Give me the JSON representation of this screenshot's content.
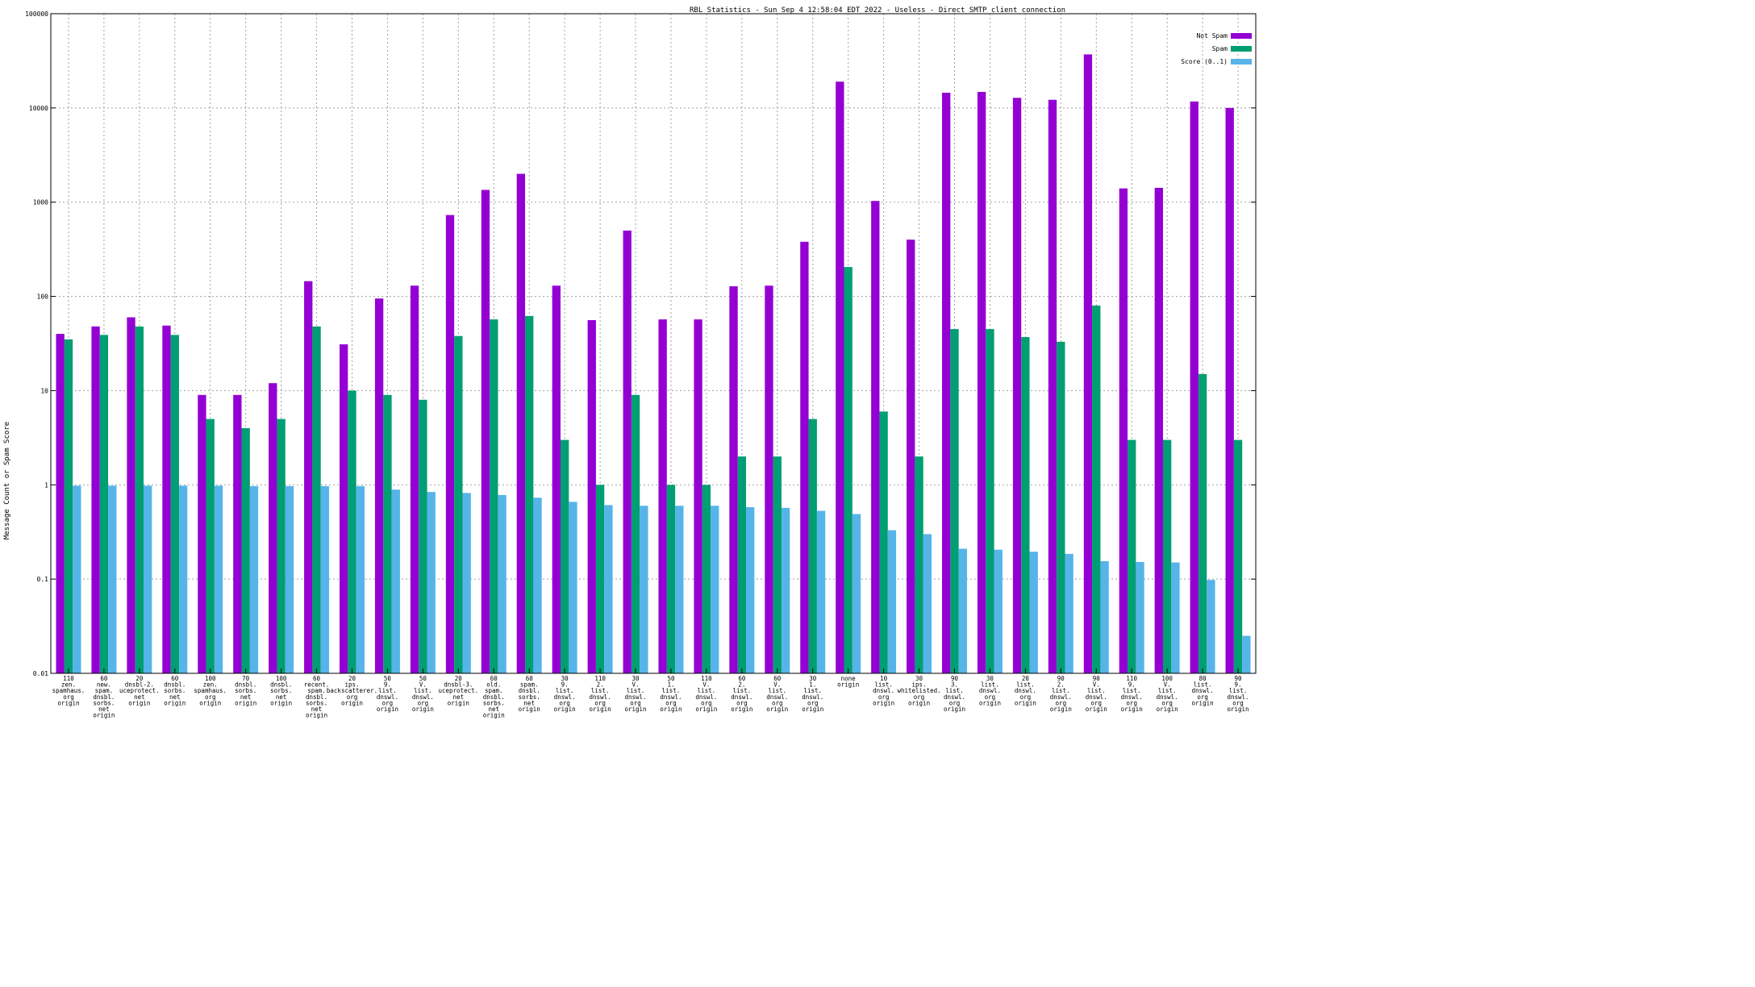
{
  "chart_data": {
    "type": "bar",
    "title": "RBL Statistics - Sun Sep  4 12:58:04 EDT 2022 - Useless - Direct SMTP client connection",
    "xlabel": "",
    "ylabel": "Message Count or Spam Score",
    "yscale": "log",
    "ylim": [
      0.01,
      100000
    ],
    "yticks": [
      {
        "value": 0.01,
        "label": "0.01"
      },
      {
        "value": 0.1,
        "label": "0.1"
      },
      {
        "value": 1,
        "label": "1"
      },
      {
        "value": 10,
        "label": "10"
      },
      {
        "value": 100,
        "label": "100"
      },
      {
        "value": 1000,
        "label": "1000"
      },
      {
        "value": 10000,
        "label": "10000"
      },
      {
        "value": 100000,
        "label": "100000"
      }
    ],
    "grid": true,
    "legend_position": "top-right",
    "categories": [
      [
        "110",
        "zen.",
        "spamhaus.",
        "org",
        "origin"
      ],
      [
        "60",
        "new.",
        "spam.",
        "dnsbl.",
        "sorbs.",
        "net",
        "origin"
      ],
      [
        "20",
        "dnsbl-2.",
        "uceprotect.",
        "net",
        "origin"
      ],
      [
        "60",
        "dnsbl.",
        "sorbs.",
        "net",
        "origin"
      ],
      [
        "100",
        "zen.",
        "spamhaus.",
        "org",
        "origin"
      ],
      [
        "70",
        "dnsbl.",
        "sorbs.",
        "net",
        "origin"
      ],
      [
        "100",
        "dnsbl.",
        "sorbs.",
        "net",
        "origin"
      ],
      [
        "60",
        "recent.",
        "spam.",
        "dnsbl.",
        "sorbs.",
        "net",
        "origin"
      ],
      [
        "20",
        "ips.",
        "backscatterer.",
        "org",
        "origin"
      ],
      [
        "50",
        "9.",
        "list.",
        "dnswl.",
        "org",
        "origin"
      ],
      [
        "50",
        "V.",
        "list.",
        "dnswl.",
        "org",
        "origin"
      ],
      [
        "20",
        "dnsbl-3.",
        "uceprotect.",
        "net",
        "origin"
      ],
      [
        "60",
        "old.",
        "spam.",
        "dnsbl.",
        "sorbs.",
        "net",
        "origin"
      ],
      [
        "60",
        "spam.",
        "dnsbl.",
        "sorbs.",
        "net",
        "origin"
      ],
      [
        "30",
        "9.",
        "list.",
        "dnswl.",
        "org",
        "origin"
      ],
      [
        "110",
        "2.",
        "list.",
        "dnswl.",
        "org",
        "origin"
      ],
      [
        "30",
        "V.",
        "list.",
        "dnswl.",
        "org",
        "origin"
      ],
      [
        "50",
        "1.",
        "list.",
        "dnswl.",
        "org",
        "origin"
      ],
      [
        "110",
        "V.",
        "list.",
        "dnswl.",
        "org",
        "origin"
      ],
      [
        "60",
        "2.",
        "list.",
        "dnswl.",
        "org",
        "origin"
      ],
      [
        "60",
        "V.",
        "list.",
        "dnswl.",
        "org",
        "origin"
      ],
      [
        "30",
        "1.",
        "list.",
        "dnswl.",
        "org",
        "origin"
      ],
      [
        "none",
        "origin"
      ],
      [
        "10",
        "list.",
        "dnswl.",
        "org",
        "origin"
      ],
      [
        "30",
        "ips.",
        "whitelisted.",
        "org",
        "origin"
      ],
      [
        "90",
        "3.",
        "list.",
        "dnswl.",
        "org",
        "origin"
      ],
      [
        "30",
        "list.",
        "dnswl.",
        "org",
        "origin"
      ],
      [
        "20",
        "list.",
        "dnswl.",
        "org",
        "origin"
      ],
      [
        "90",
        "2.",
        "list.",
        "dnswl.",
        "org",
        "origin"
      ],
      [
        "90",
        "V.",
        "list.",
        "dnswl.",
        "org",
        "origin"
      ],
      [
        "110",
        "9.",
        "list.",
        "dnswl.",
        "org",
        "origin"
      ],
      [
        "100",
        "V.",
        "list.",
        "dnswl.",
        "org",
        "origin"
      ],
      [
        "80",
        "list.",
        "dnswl.",
        "org",
        "origin"
      ],
      [
        "90",
        "9.",
        "list.",
        "dnswl.",
        "org",
        "origin"
      ]
    ],
    "series": [
      {
        "name": "Not Spam",
        "color": "#9400d3",
        "values": [
          40,
          48,
          60,
          49,
          9,
          9,
          12,
          145,
          31,
          95,
          130,
          730,
          1350,
          2000,
          130,
          56,
          500,
          57,
          57,
          128,
          130,
          380,
          19000,
          1030,
          400,
          14500,
          14800,
          12800,
          12200,
          37000,
          1400,
          1420,
          11700,
          10000
        ]
      },
      {
        "name": "Spam",
        "color": "#009e73",
        "values": [
          35,
          39,
          48,
          39,
          5,
          4,
          5,
          48,
          10,
          9,
          8,
          38,
          57,
          62,
          3,
          1,
          9,
          1,
          1,
          2,
          2,
          5,
          205,
          6,
          2,
          45,
          45,
          37,
          33,
          80,
          3,
          3,
          15,
          3
        ]
      },
      {
        "name": "Score (0..1)",
        "color": "#56b4e9",
        "values": [
          0.98,
          0.98,
          0.98,
          0.98,
          0.98,
          0.97,
          0.97,
          0.97,
          0.97,
          0.89,
          0.84,
          0.82,
          0.78,
          0.73,
          0.66,
          0.61,
          0.6,
          0.6,
          0.6,
          0.58,
          0.57,
          0.53,
          0.49,
          0.33,
          0.3,
          0.21,
          0.205,
          0.195,
          0.185,
          0.155,
          0.152,
          0.15,
          0.098,
          0.025
        ]
      }
    ]
  }
}
